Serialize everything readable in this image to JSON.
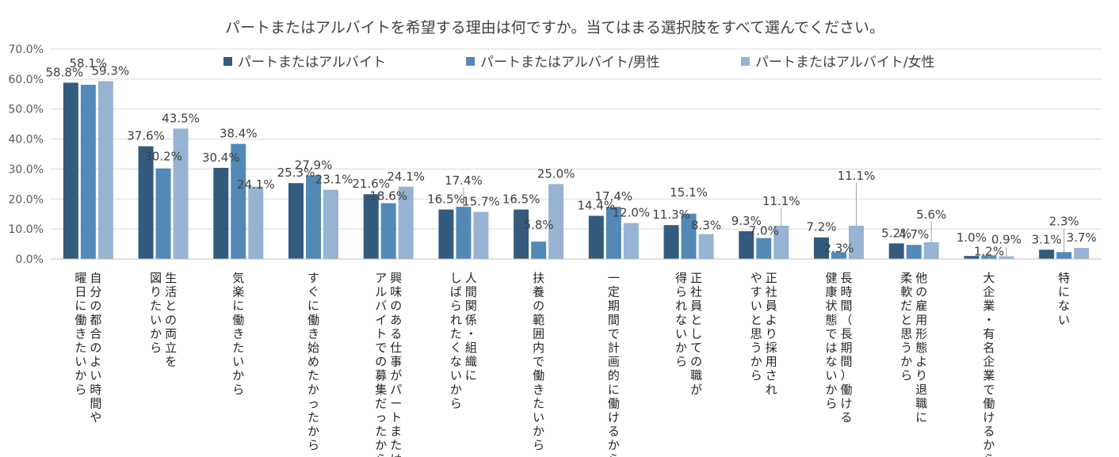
{
  "chart_data": {
    "type": "bar",
    "title": "パートまたはアルバイトを希望する理由は何ですか。当てはまる選択肢をすべて選んでください。",
    "xlabel": "",
    "ylabel": "",
    "ylim": [
      0,
      70
    ],
    "y_ticks": [
      "0.0%",
      "10.0%",
      "20.0%",
      "30.0%",
      "40.0%",
      "50.0%",
      "60.0%",
      "70.0%"
    ],
    "grid": true,
    "legend_position": "top",
    "categories": [
      [
        "自分の都合のよい時間や",
        "曜日に働きたいから"
      ],
      [
        "生活との両立を",
        "図りたいから"
      ],
      [
        "気楽に働きたいから"
      ],
      [
        "すぐに働き始めたかったから"
      ],
      [
        "興味のある仕事がパートまたは",
        "アルバイトでの募集だったから"
      ],
      [
        "人間関係・組織に",
        "しばられたくないから"
      ],
      [
        "扶養の範囲内で働きたいから"
      ],
      [
        "一定期間で計画的に働けるから"
      ],
      [
        "正社員としての職が",
        "得られないから"
      ],
      [
        "正社員より採用され",
        "やすいと思うから"
      ],
      [
        "長時間（長期間）働ける",
        "健康状態ではないから"
      ],
      [
        "他の雇用形態より退職に",
        "柔軟だと思うから"
      ],
      [
        "大企業・有名企業で働けるから"
      ],
      [
        "特にない"
      ]
    ],
    "series": [
      {
        "name": "パートまたはアルバイト",
        "color": "#335b7e",
        "values": [
          58.8,
          37.6,
          30.4,
          25.3,
          21.6,
          16.5,
          16.5,
          14.4,
          11.3,
          9.3,
          7.2,
          5.2,
          1.0,
          3.1
        ],
        "labels": [
          "58.8%",
          "37.6%",
          "30.4%",
          "25.3%",
          "21.6%",
          "16.5%",
          "16.5%",
          "14.4%",
          "11.3%",
          "9.3%",
          "7.2%",
          "5.2%",
          "1.0%",
          "3.1%"
        ]
      },
      {
        "name": "パートまたはアルバイト/男性",
        "color": "#5289b7",
        "values": [
          58.1,
          30.2,
          38.4,
          27.9,
          18.6,
          17.4,
          5.8,
          17.4,
          15.1,
          7.0,
          2.3,
          4.7,
          1.2,
          2.3
        ],
        "labels": [
          "58.1%",
          "30.2%",
          "38.4%",
          "27.9%",
          "18.6%",
          "17.4%",
          "5.8%",
          "17.4%",
          "15.1%",
          "7.0%",
          "2.3%",
          "4.7%",
          "1.2%",
          "2.3%"
        ]
      },
      {
        "name": "パートまたはアルバイト/女性",
        "color": "#96b3d3",
        "values": [
          59.3,
          43.5,
          24.1,
          23.1,
          24.1,
          15.7,
          25.0,
          12.0,
          8.3,
          11.1,
          11.1,
          5.6,
          0.9,
          3.7
        ],
        "labels": [
          "59.3%",
          "43.5%",
          "24.1%",
          "23.1%",
          "24.1%",
          "15.7%",
          "25.0%",
          "12.0%",
          "8.3%",
          "11.1%",
          "11.1%",
          "5.6%",
          "0.9%",
          "3.7%"
        ]
      }
    ]
  }
}
